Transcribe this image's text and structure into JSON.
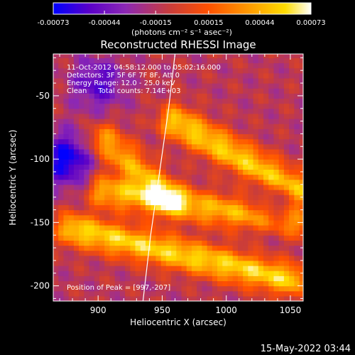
{
  "chart_data": {
    "type": "heatmap",
    "title": "Reconstructed RHESSI Image",
    "xlabel": "Heliocentric X (arcsec)",
    "ylabel": "Heliocentric Y (arcsec)",
    "xlim": [
      865,
      1060
    ],
    "ylim": [
      -212,
      -17
    ],
    "x_ticks": [
      900,
      950,
      1000,
      1050
    ],
    "y_ticks": [
      -50,
      -100,
      -150,
      -200
    ],
    "colorbar": {
      "range": [
        -0.00073,
        0.00073
      ],
      "tick_values": [
        -0.00073,
        -0.00044,
        -0.00015,
        0.00015,
        0.00044,
        0.00073
      ],
      "tick_labels": [
        "-0.00073",
        "-0.00044",
        "-0.00015",
        "0.00015",
        "0.00044",
        "0.00073"
      ],
      "unit": "(photons cm⁻² s⁻¹ asec⁻²)",
      "colors": [
        "#0000ff",
        "#5a00c8",
        "#8c28b4",
        "#c83c3c",
        "#ff5000",
        "#ff9600",
        "#ffdc00",
        "#ffffff"
      ]
    },
    "annotations": [
      "11-Oct-2012 04:58:12.000 to 05:02:16.000",
      "Detectors: 3F 5F 6F 7F 8F, Att 0",
      "Energy Range: 12.0 - 25.0 keV",
      "Clean     Total counts: 7.14E+03"
    ],
    "peak_label": "Position of Peak = [997,-207]",
    "peak": [
      997,
      -207
    ],
    "limb_arc": [
      [
        960,
        -17
      ],
      [
        955,
        -60
      ],
      [
        948,
        -110
      ],
      [
        941,
        -160
      ],
      [
        935,
        -212
      ]
    ],
    "emission_ridges": [
      {
        "x0": 905,
        "y0": -85,
        "x1": 955,
        "y1": -130,
        "peak": 0.00055
      },
      {
        "x0": 960,
        "y0": -70,
        "x1": 1058,
        "y1": -125,
        "peak": 0.00068
      },
      {
        "x0": 905,
        "y0": -125,
        "x1": 1055,
        "y1": -150,
        "peak": 0.0006
      },
      {
        "x0": 880,
        "y0": -155,
        "x1": 1050,
        "y1": -195,
        "peak": 0.0007
      }
    ],
    "negative_regions": [
      {
        "x": 875,
        "y": -100,
        "value": -0.0006
      },
      {
        "x": 900,
        "y": -40,
        "value": -0.0004
      },
      {
        "x": 1040,
        "y": -140,
        "value": -0.0003
      }
    ]
  },
  "footer": {
    "timestamp": "15-May-2022 03:44"
  }
}
